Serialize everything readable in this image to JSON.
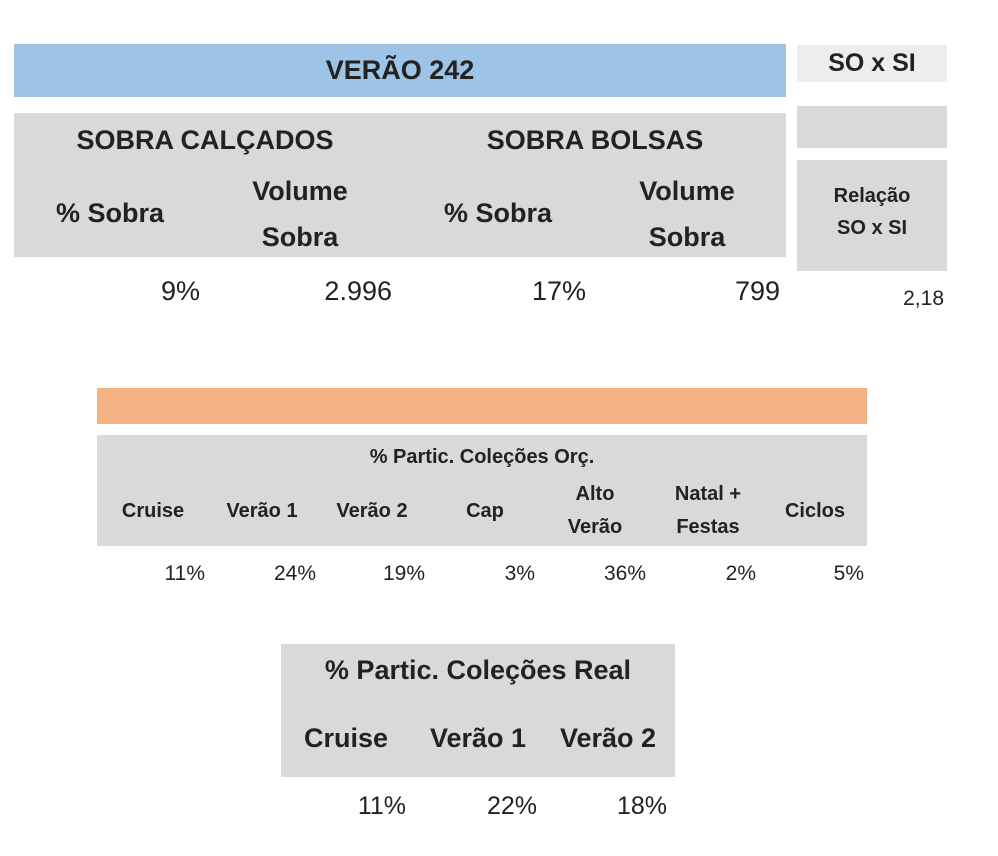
{
  "colors": {
    "title_bar": "#9dc3e6",
    "orange_bar": "#f4b183",
    "header_grey": "#d9d9d9"
  },
  "top": {
    "title": "VERÃO 242",
    "calcados": {
      "title": "SOBRA CALÇADOS",
      "col1": "% Sobra",
      "col2_line1": "Volume",
      "col2_line2": "Sobra",
      "pct": "9%",
      "volume": "2.996"
    },
    "bolsas": {
      "title": "SOBRA BOLSAS",
      "col1": "% Sobra",
      "col2_line1": "Volume",
      "col2_line2": "Sobra",
      "pct": "17%",
      "volume": "799"
    },
    "soxsi": {
      "title": "SO x SI",
      "relacao_line1": "Relação",
      "relacao_line2": "SO x SI",
      "value": "2,18"
    }
  },
  "orcado": {
    "title": "% Partic. Coleções Orç.",
    "columns": [
      {
        "line1": "Cruise",
        "line2": "",
        "value": "11%"
      },
      {
        "line1": "Verão 1",
        "line2": "",
        "value": "24%"
      },
      {
        "line1": "Verão 2",
        "line2": "",
        "value": "19%"
      },
      {
        "line1": "Cap",
        "line2": "",
        "value": "3%"
      },
      {
        "line1": "Alto",
        "line2": "Verão",
        "value": "36%"
      },
      {
        "line1": "Natal +",
        "line2": "Festas",
        "value": "2%"
      },
      {
        "line1": "Ciclos",
        "line2": "",
        "value": "5%"
      }
    ]
  },
  "real": {
    "title": "% Partic. Coleções Real",
    "columns": [
      {
        "label": "Cruise",
        "value": "11%"
      },
      {
        "label": "Verão 1",
        "value": "22%"
      },
      {
        "label": "Verão 2",
        "value": "18%"
      }
    ]
  }
}
